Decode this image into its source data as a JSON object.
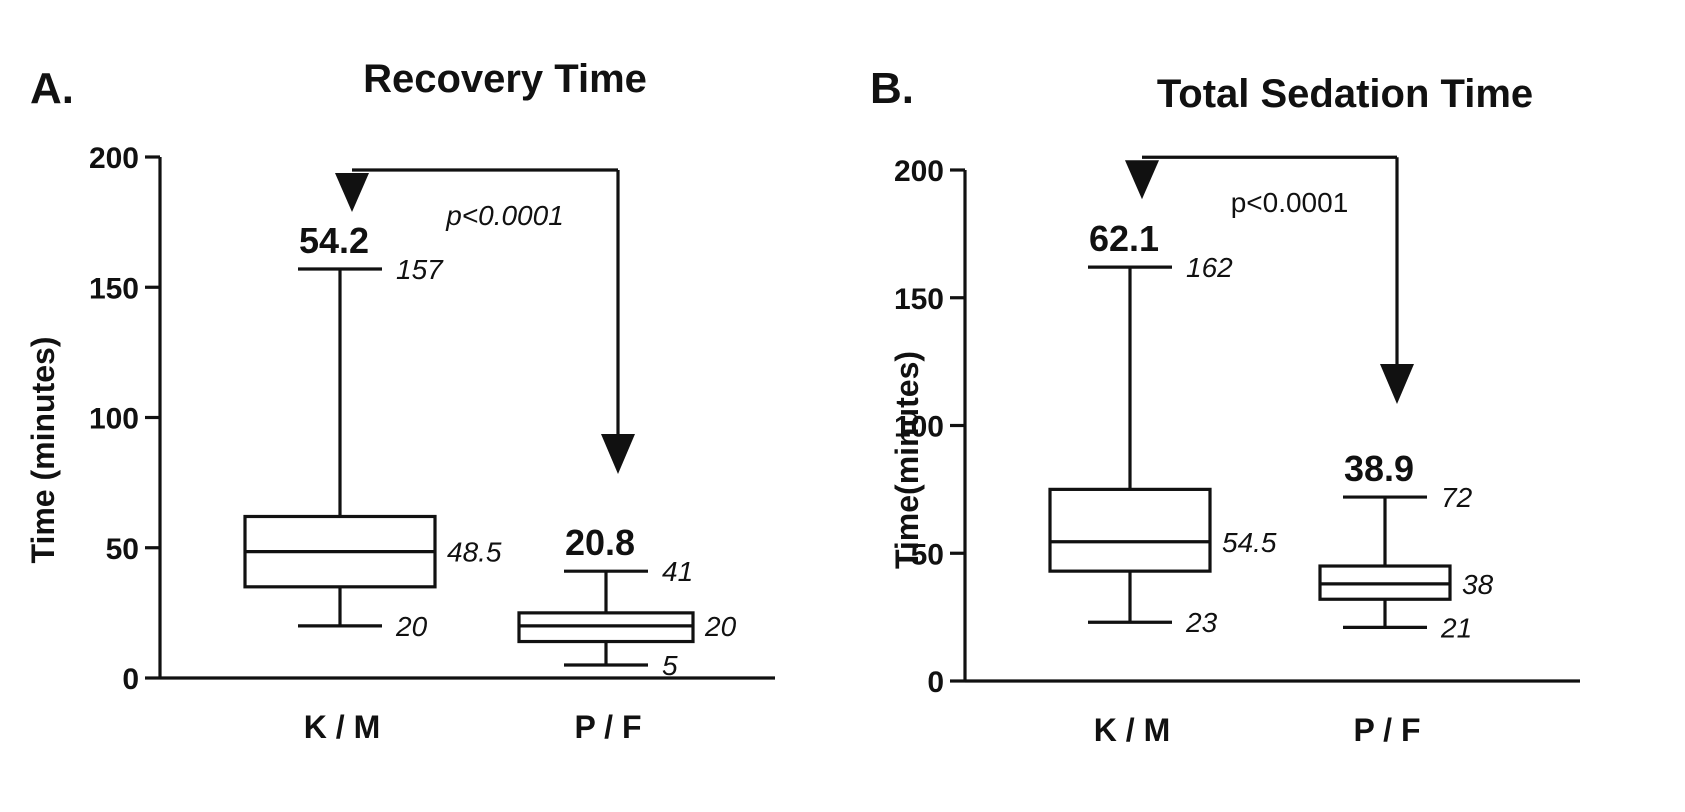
{
  "chart_data": [
    {
      "type": "box",
      "panel_label": "A.",
      "title": "Recovery Time",
      "ylabel": "Time (minutes)",
      "xlabel": "",
      "ylim": [
        0,
        200
      ],
      "yticks": [
        "0",
        "50",
        "100",
        "150",
        "200"
      ],
      "categories": [
        "K / M",
        "P / F"
      ],
      "boxes": [
        {
          "category": "K / M",
          "min": 20,
          "q1": 35,
          "median": 48.5,
          "q3": 62,
          "max": 157,
          "mean": 54.2,
          "labels": {
            "mean": "54.2",
            "max": "157",
            "median": "48.5",
            "min": "20"
          }
        },
        {
          "category": "P / F",
          "min": 5,
          "q1": 14,
          "median": 20,
          "q3": 25,
          "max": 41,
          "mean": 20.8,
          "labels": {
            "mean": "20.8",
            "max": "41",
            "median": "20",
            "min": "5"
          }
        }
      ],
      "comparison": {
        "text": "p<0.0001",
        "italic": true,
        "bracket_value": 195
      }
    },
    {
      "type": "box",
      "panel_label": "B.",
      "title": "Total Sedation Time",
      "ylabel": "Time(minutes)",
      "xlabel": "",
      "ylim": [
        0,
        200
      ],
      "yticks": [
        "0",
        "50",
        "100",
        "150",
        "200"
      ],
      "categories": [
        "K / M",
        "P / F"
      ],
      "boxes": [
        {
          "category": "K / M",
          "min": 23,
          "q1": 43,
          "median": 54.5,
          "q3": 75,
          "max": 162,
          "mean": 62.1,
          "labels": {
            "mean": "62.1",
            "max": "162",
            "median": "54.5",
            "min": "23"
          }
        },
        {
          "category": "P / F",
          "min": 21,
          "q1": 32,
          "median": 38,
          "q3": 45,
          "max": 72,
          "mean": 38.9,
          "labels": {
            "mean": "38.9",
            "max": "72",
            "median": "38",
            "min": "21"
          }
        }
      ],
      "comparison": {
        "text": "p<0.0001",
        "italic": false,
        "bracket_value": 205
      }
    }
  ]
}
